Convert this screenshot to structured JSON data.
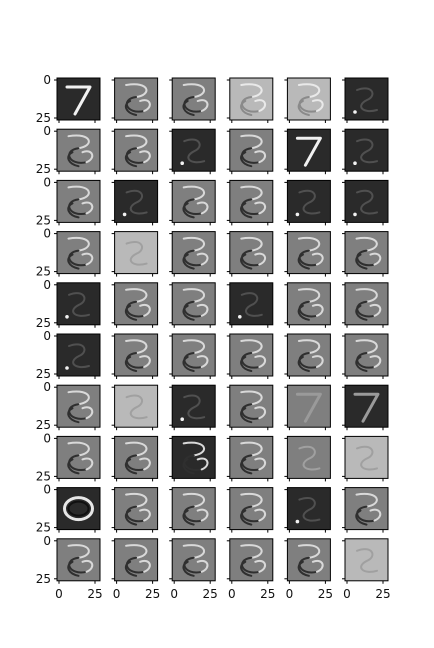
{
  "figure": {
    "grid": {
      "rows": 10,
      "cols": 6
    },
    "image_size": 28,
    "tick_labels": [
      "0",
      "25"
    ],
    "panels": [
      {
        "id": "r0c0",
        "style": "dark",
        "digit": "7",
        "bright": true
      },
      {
        "id": "r0c1",
        "style": "mid",
        "pattern": "swirl"
      },
      {
        "id": "r0c2",
        "style": "mid",
        "pattern": "swirl"
      },
      {
        "id": "r0c3",
        "style": "light",
        "pattern": "swirl"
      },
      {
        "id": "r0c4",
        "style": "light",
        "pattern": "swirl"
      },
      {
        "id": "r0c5",
        "style": "dark",
        "pattern": "faint"
      },
      {
        "id": "r1c0",
        "style": "mid",
        "pattern": "swirl"
      },
      {
        "id": "r1c1",
        "style": "mid",
        "pattern": "swirl"
      },
      {
        "id": "r1c2",
        "style": "dark",
        "pattern": "faint"
      },
      {
        "id": "r1c3",
        "style": "mid",
        "pattern": "swirl"
      },
      {
        "id": "r1c4",
        "style": "dark",
        "digit": "7",
        "bright": true
      },
      {
        "id": "r1c5",
        "style": "dark",
        "pattern": "faint"
      },
      {
        "id": "r2c0",
        "style": "mid",
        "pattern": "swirl"
      },
      {
        "id": "r2c1",
        "style": "dark",
        "pattern": "faint"
      },
      {
        "id": "r2c2",
        "style": "mid",
        "pattern": "swirl"
      },
      {
        "id": "r2c3",
        "style": "mid",
        "pattern": "swirl"
      },
      {
        "id": "r2c4",
        "style": "dark",
        "pattern": "faint"
      },
      {
        "id": "r2c5",
        "style": "dark",
        "pattern": "faint"
      },
      {
        "id": "r3c0",
        "style": "mid",
        "pattern": "swirl"
      },
      {
        "id": "r3c1",
        "style": "light",
        "pattern": "faint"
      },
      {
        "id": "r3c2",
        "style": "mid",
        "pattern": "swirl"
      },
      {
        "id": "r3c3",
        "style": "mid",
        "pattern": "swirl"
      },
      {
        "id": "r3c4",
        "style": "mid",
        "pattern": "swirl"
      },
      {
        "id": "r3c5",
        "style": "mid",
        "pattern": "swirl"
      },
      {
        "id": "r4c0",
        "style": "dark",
        "pattern": "faint"
      },
      {
        "id": "r4c1",
        "style": "mid",
        "pattern": "swirl"
      },
      {
        "id": "r4c2",
        "style": "mid",
        "pattern": "swirl"
      },
      {
        "id": "r4c3",
        "style": "dark",
        "pattern": "faint"
      },
      {
        "id": "r4c4",
        "style": "mid",
        "pattern": "swirl"
      },
      {
        "id": "r4c5",
        "style": "mid",
        "pattern": "swirl"
      },
      {
        "id": "r5c0",
        "style": "dark",
        "pattern": "faint"
      },
      {
        "id": "r5c1",
        "style": "mid",
        "pattern": "swirl"
      },
      {
        "id": "r5c2",
        "style": "mid",
        "pattern": "swirl"
      },
      {
        "id": "r5c3",
        "style": "mid",
        "pattern": "swirl"
      },
      {
        "id": "r5c4",
        "style": "mid",
        "pattern": "swirl"
      },
      {
        "id": "r5c5",
        "style": "mid",
        "pattern": "swirl"
      },
      {
        "id": "r6c0",
        "style": "mid",
        "pattern": "swirl"
      },
      {
        "id": "r6c1",
        "style": "light",
        "pattern": "faint"
      },
      {
        "id": "r6c2",
        "style": "dark",
        "pattern": "faint"
      },
      {
        "id": "r6c3",
        "style": "mid",
        "pattern": "swirl"
      },
      {
        "id": "r6c4",
        "style": "mid",
        "digit": "7"
      },
      {
        "id": "r6c5",
        "style": "dark",
        "digit": "7"
      },
      {
        "id": "r7c0",
        "style": "mid",
        "pattern": "swirl"
      },
      {
        "id": "r7c1",
        "style": "mid",
        "pattern": "swirl"
      },
      {
        "id": "r7c2",
        "style": "dark",
        "pattern": "swirl"
      },
      {
        "id": "r7c3",
        "style": "mid",
        "pattern": "swirl"
      },
      {
        "id": "r7c4",
        "style": "mid",
        "pattern": "faint"
      },
      {
        "id": "r7c5",
        "style": "light",
        "pattern": "faint"
      },
      {
        "id": "r8c0",
        "style": "dark",
        "pattern": "ring"
      },
      {
        "id": "r8c1",
        "style": "mid",
        "pattern": "swirl"
      },
      {
        "id": "r8c2",
        "style": "mid",
        "pattern": "swirl"
      },
      {
        "id": "r8c3",
        "style": "mid",
        "pattern": "swirl"
      },
      {
        "id": "r8c4",
        "style": "dark",
        "pattern": "faint"
      },
      {
        "id": "r8c5",
        "style": "mid",
        "pattern": "swirl"
      },
      {
        "id": "r9c0",
        "style": "mid",
        "pattern": "swirl"
      },
      {
        "id": "r9c1",
        "style": "mid",
        "pattern": "swirl"
      },
      {
        "id": "r9c2",
        "style": "mid",
        "pattern": "swirl"
      },
      {
        "id": "r9c3",
        "style": "mid",
        "pattern": "swirl"
      },
      {
        "id": "r9c4",
        "style": "mid",
        "pattern": "swirl"
      },
      {
        "id": "r9c5",
        "style": "light",
        "pattern": "faint"
      }
    ]
  }
}
